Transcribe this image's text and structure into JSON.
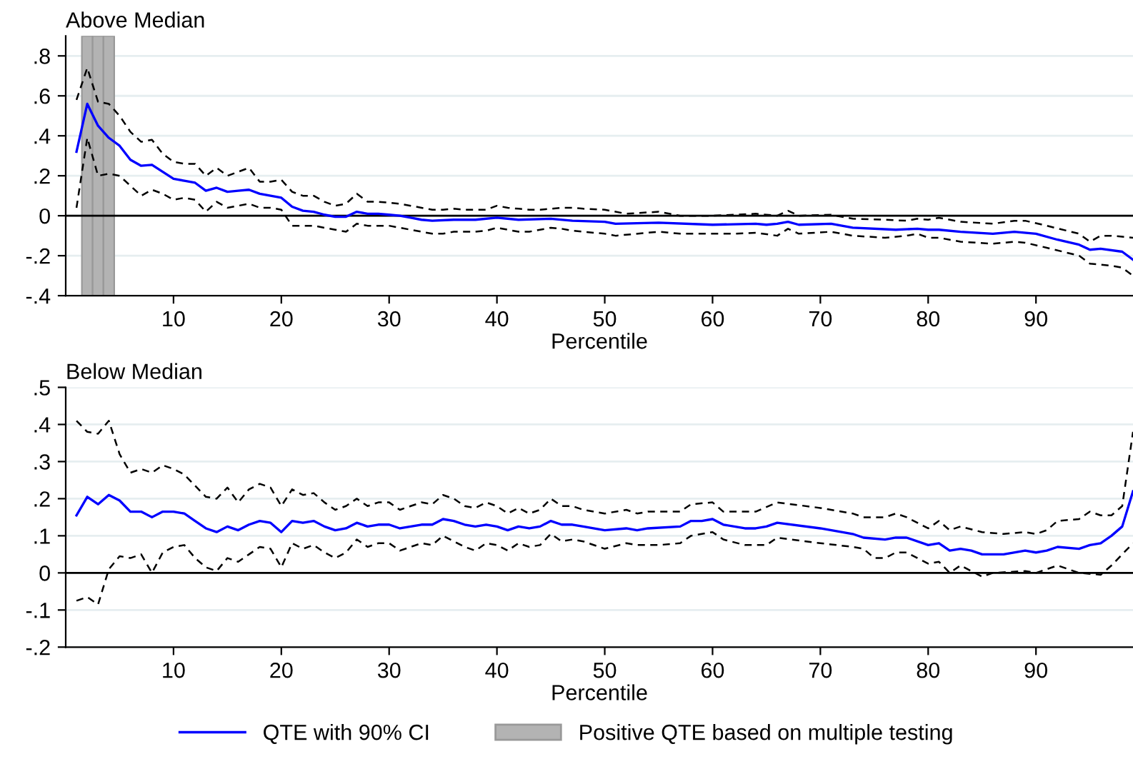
{
  "chart_data": [
    {
      "type": "line",
      "title": "Above Median",
      "xlabel": "Percentile",
      "xlim": [
        0,
        99
      ],
      "xticks": [
        10,
        20,
        30,
        40,
        50,
        60,
        70,
        80,
        90
      ],
      "ylim": [
        -0.4,
        0.9
      ],
      "yticks": [
        {
          "value": -0.4,
          "label": "-.4"
        },
        {
          "value": -0.2,
          "label": "-.2"
        },
        0,
        {
          "value": 0.2,
          "label": ".2"
        },
        {
          "value": 0.4,
          "label": ".4"
        },
        {
          "value": 0.6,
          "label": ".6"
        },
        {
          "value": 0.8,
          "label": ".8"
        }
      ],
      "grid": "y",
      "legend": "bottom",
      "ref_lines": [
        {
          "axis": "y",
          "value": 0,
          "color": "#000000"
        }
      ],
      "bands": [
        {
          "axis": "x",
          "from": 1.5,
          "to": 2.5,
          "color": "#b3b3b3",
          "label": "Positive QTE based on multiple testing"
        },
        {
          "axis": "x",
          "from": 2.5,
          "to": 3.5,
          "color": "#b3b3b3"
        },
        {
          "axis": "x",
          "from": 3.5,
          "to": 4.5,
          "color": "#b3b3b3"
        }
      ],
      "series": [
        {
          "name": "QTE with 90% CI",
          "color": "#0000ff",
          "line_style": "solid",
          "x": [
            1,
            2,
            3,
            4,
            5,
            6,
            7,
            8,
            9,
            10,
            11,
            12,
            13,
            14,
            15,
            16,
            17,
            18,
            19,
            20,
            21,
            22,
            23,
            24,
            25,
            26,
            27,
            28,
            29,
            30,
            31,
            32,
            33,
            34,
            36,
            38,
            40,
            42,
            45,
            47,
            50,
            51,
            55,
            60,
            64,
            65,
            66,
            67,
            68,
            71,
            73,
            77,
            79,
            80,
            81,
            83,
            86,
            88,
            90,
            92,
            94,
            95,
            96,
            98,
            99
          ],
          "values": [
            0.32,
            0.56,
            0.45,
            0.39,
            0.35,
            0.28,
            0.25,
            0.255,
            0.22,
            0.185,
            0.175,
            0.165,
            0.125,
            0.14,
            0.12,
            0.125,
            0.13,
            0.11,
            0.1,
            0.09,
            0.045,
            0.025,
            0.02,
            0.005,
            -0.005,
            -0.005,
            0.02,
            0.01,
            0.01,
            0.005,
            0,
            -0.01,
            -0.02,
            -0.025,
            -0.02,
            -0.02,
            -0.01,
            -0.02,
            -0.015,
            -0.025,
            -0.03,
            -0.04,
            -0.035,
            -0.045,
            -0.04,
            -0.045,
            -0.04,
            -0.03,
            -0.045,
            -0.04,
            -0.06,
            -0.07,
            -0.065,
            -0.07,
            -0.07,
            -0.08,
            -0.09,
            -0.08,
            -0.09,
            -0.12,
            -0.145,
            -0.17,
            -0.165,
            -0.18,
            -0.22
          ]
        },
        {
          "color": "#000000",
          "line_style": "dashed",
          "x": [
            1,
            2,
            3,
            4,
            5,
            6,
            7,
            8,
            9,
            10,
            11,
            12,
            13,
            14,
            15,
            16,
            17,
            18,
            19,
            20,
            21,
            22,
            23,
            24,
            25,
            26,
            27,
            28,
            29,
            30,
            31,
            32,
            33,
            34,
            35,
            36,
            37,
            38,
            39,
            40,
            41,
            42,
            43,
            44,
            45,
            46,
            47,
            48,
            50,
            52,
            55,
            57,
            60,
            64,
            66,
            67,
            68,
            71,
            73,
            76,
            78,
            79,
            80,
            81,
            83,
            86,
            88,
            89,
            91,
            94,
            95,
            96,
            97,
            99
          ],
          "values": [
            0.58,
            0.74,
            0.57,
            0.56,
            0.5,
            0.42,
            0.37,
            0.38,
            0.31,
            0.27,
            0.26,
            0.26,
            0.2,
            0.24,
            0.2,
            0.22,
            0.24,
            0.17,
            0.17,
            0.18,
            0.12,
            0.1,
            0.1,
            0.07,
            0.05,
            0.06,
            0.11,
            0.07,
            0.07,
            0.065,
            0.06,
            0.05,
            0.04,
            0.03,
            0.03,
            0.035,
            0.03,
            0.03,
            0.03,
            0.05,
            0.04,
            0.035,
            0.03,
            0.03,
            0.035,
            0.04,
            0.04,
            0.035,
            0.03,
            0.01,
            0.02,
            0,
            0,
            0.01,
            0,
            0.025,
            0,
            0.005,
            -0.015,
            -0.02,
            -0.025,
            -0.015,
            -0.02,
            -0.01,
            -0.03,
            -0.04,
            -0.025,
            -0.025,
            -0.05,
            -0.09,
            -0.13,
            -0.1,
            -0.1,
            -0.11
          ]
        },
        {
          "color": "#000000",
          "line_style": "dashed",
          "x": [
            1,
            2,
            3,
            4,
            5,
            6,
            7,
            8,
            9,
            10,
            11,
            12,
            13,
            14,
            15,
            16,
            17,
            18,
            19,
            20,
            21,
            22,
            23,
            24,
            25,
            26,
            27,
            28,
            29,
            30,
            31,
            32,
            33,
            34,
            35,
            36,
            37,
            38,
            39,
            40,
            41,
            42,
            43,
            44,
            45,
            46,
            47,
            48,
            50,
            51,
            55,
            57,
            60,
            62,
            64,
            66,
            67,
            68,
            71,
            73,
            76,
            78,
            79,
            80,
            81,
            83,
            86,
            88,
            89,
            91,
            94,
            95,
            97,
            98,
            99
          ],
          "values": [
            0.04,
            0.39,
            0.2,
            0.21,
            0.2,
            0.15,
            0.1,
            0.13,
            0.11,
            0.08,
            0.09,
            0.08,
            0.02,
            0.07,
            0.04,
            0.05,
            0.06,
            0.04,
            0.04,
            0.03,
            -0.05,
            -0.05,
            -0.05,
            -0.06,
            -0.07,
            -0.08,
            -0.04,
            -0.05,
            -0.05,
            -0.05,
            -0.06,
            -0.07,
            -0.08,
            -0.09,
            -0.09,
            -0.08,
            -0.08,
            -0.08,
            -0.075,
            -0.06,
            -0.07,
            -0.08,
            -0.08,
            -0.07,
            -0.06,
            -0.065,
            -0.075,
            -0.08,
            -0.09,
            -0.1,
            -0.08,
            -0.09,
            -0.09,
            -0.09,
            -0.085,
            -0.1,
            -0.065,
            -0.09,
            -0.08,
            -0.1,
            -0.11,
            -0.1,
            -0.09,
            -0.11,
            -0.11,
            -0.13,
            -0.14,
            -0.13,
            -0.135,
            -0.16,
            -0.2,
            -0.24,
            -0.25,
            -0.26,
            -0.3
          ]
        }
      ]
    },
    {
      "type": "line",
      "title": "Below Median",
      "xlabel": "Percentile",
      "xlim": [
        0,
        99
      ],
      "xticks": [
        10,
        20,
        30,
        40,
        50,
        60,
        70,
        80,
        90
      ],
      "ylim": [
        -0.2,
        0.5
      ],
      "yticks": [
        {
          "value": -0.2,
          "label": "-.2"
        },
        {
          "value": -0.1,
          "label": "-.1"
        },
        0,
        {
          "value": 0.1,
          "label": ".1"
        },
        {
          "value": 0.2,
          "label": ".2"
        },
        {
          "value": 0.3,
          "label": ".3"
        },
        {
          "value": 0.4,
          "label": ".4"
        },
        {
          "value": 0.5,
          "label": ".5"
        }
      ],
      "grid": "y",
      "ref_lines": [
        {
          "axis": "y",
          "value": 0,
          "color": "#000000"
        }
      ],
      "series": [
        {
          "color": "#0000ff",
          "line_style": "solid",
          "x": [
            1,
            2,
            3,
            4,
            5,
            6,
            7,
            8,
            9,
            10,
            11,
            12,
            13,
            14,
            15,
            16,
            17,
            18,
            19,
            20,
            21,
            22,
            23,
            24,
            25,
            26,
            27,
            28,
            29,
            30,
            31,
            32,
            33,
            34,
            35,
            36,
            37,
            38,
            39,
            40,
            41,
            42,
            43,
            44,
            45,
            46,
            47,
            48,
            50,
            52,
            53,
            54,
            57,
            58,
            59,
            60,
            61,
            63,
            64,
            65,
            66,
            70,
            73,
            74,
            76,
            77,
            78,
            80,
            81,
            82,
            83,
            84,
            85,
            87,
            89,
            90,
            91,
            92,
            94,
            95,
            96,
            97,
            98,
            99
          ],
          "values": [
            0.155,
            0.205,
            0.185,
            0.21,
            0.195,
            0.165,
            0.165,
            0.15,
            0.165,
            0.165,
            0.16,
            0.14,
            0.12,
            0.11,
            0.125,
            0.115,
            0.13,
            0.14,
            0.135,
            0.11,
            0.14,
            0.135,
            0.14,
            0.125,
            0.115,
            0.12,
            0.135,
            0.125,
            0.13,
            0.13,
            0.12,
            0.125,
            0.13,
            0.13,
            0.145,
            0.14,
            0.13,
            0.125,
            0.13,
            0.125,
            0.115,
            0.125,
            0.12,
            0.125,
            0.14,
            0.13,
            0.13,
            0.125,
            0.115,
            0.12,
            0.115,
            0.12,
            0.125,
            0.14,
            0.14,
            0.145,
            0.13,
            0.12,
            0.12,
            0.125,
            0.135,
            0.12,
            0.105,
            0.095,
            0.09,
            0.095,
            0.095,
            0.075,
            0.08,
            0.06,
            0.065,
            0.06,
            0.05,
            0.05,
            0.06,
            0.055,
            0.06,
            0.07,
            0.065,
            0.075,
            0.08,
            0.1,
            0.125,
            0.22
          ]
        },
        {
          "color": "#000000",
          "line_style": "dashed",
          "x": [
            1,
            2,
            3,
            4,
            5,
            6,
            7,
            8,
            9,
            10,
            11,
            12,
            13,
            14,
            15,
            16,
            17,
            18,
            19,
            20,
            21,
            22,
            23,
            24,
            25,
            26,
            27,
            28,
            29,
            30,
            31,
            32,
            33,
            34,
            35,
            36,
            37,
            38,
            39,
            40,
            41,
            42,
            43,
            44,
            45,
            46,
            47,
            48,
            50,
            52,
            53,
            54,
            57,
            58,
            60,
            61,
            64,
            66,
            70,
            73,
            74,
            76,
            77,
            78,
            80,
            81,
            82,
            83,
            85,
            87,
            89,
            90,
            91,
            92,
            94,
            95,
            96,
            97,
            98,
            99
          ],
          "values": [
            0.41,
            0.38,
            0.375,
            0.41,
            0.32,
            0.27,
            0.28,
            0.27,
            0.29,
            0.28,
            0.265,
            0.235,
            0.205,
            0.2,
            0.23,
            0.19,
            0.225,
            0.24,
            0.23,
            0.18,
            0.225,
            0.21,
            0.215,
            0.19,
            0.17,
            0.18,
            0.2,
            0.18,
            0.19,
            0.19,
            0.17,
            0.18,
            0.19,
            0.185,
            0.21,
            0.2,
            0.18,
            0.175,
            0.19,
            0.18,
            0.16,
            0.175,
            0.16,
            0.17,
            0.2,
            0.18,
            0.18,
            0.17,
            0.16,
            0.17,
            0.16,
            0.165,
            0.165,
            0.185,
            0.19,
            0.165,
            0.165,
            0.19,
            0.175,
            0.16,
            0.15,
            0.15,
            0.16,
            0.15,
            0.12,
            0.14,
            0.115,
            0.125,
            0.11,
            0.105,
            0.11,
            0.105,
            0.115,
            0.14,
            0.145,
            0.165,
            0.155,
            0.155,
            0.18,
            0.38
          ]
        },
        {
          "color": "#000000",
          "line_style": "dashed",
          "x": [
            1,
            2,
            3,
            4,
            5,
            6,
            7,
            8,
            9,
            10,
            11,
            12,
            13,
            14,
            15,
            16,
            17,
            18,
            19,
            20,
            21,
            22,
            23,
            24,
            25,
            26,
            27,
            28,
            29,
            30,
            31,
            32,
            33,
            34,
            35,
            36,
            37,
            38,
            39,
            40,
            41,
            42,
            43,
            44,
            45,
            46,
            47,
            48,
            50,
            52,
            53,
            55,
            57,
            58,
            60,
            61,
            63,
            65,
            66,
            70,
            73,
            74,
            75,
            76,
            77,
            78,
            80,
            81,
            82,
            83,
            85,
            86,
            89,
            90,
            92,
            94,
            96,
            97,
            98,
            99
          ],
          "values": [
            -0.075,
            -0.065,
            -0.085,
            0.01,
            0.045,
            0.04,
            0.05,
            0,
            0.055,
            0.07,
            0.075,
            0.04,
            0.015,
            0.005,
            0.04,
            0.03,
            0.05,
            0.07,
            0.065,
            0.015,
            0.08,
            0.065,
            0.075,
            0.055,
            0.04,
            0.055,
            0.09,
            0.07,
            0.08,
            0.08,
            0.06,
            0.07,
            0.08,
            0.075,
            0.1,
            0.085,
            0.07,
            0.06,
            0.08,
            0.075,
            0.06,
            0.08,
            0.07,
            0.075,
            0.105,
            0.085,
            0.09,
            0.085,
            0.065,
            0.08,
            0.075,
            0.075,
            0.08,
            0.1,
            0.11,
            0.09,
            0.075,
            0.075,
            0.095,
            0.08,
            0.07,
            0.065,
            0.04,
            0.04,
            0.055,
            0.055,
            0.025,
            0.03,
            0,
            0.02,
            -0.01,
            0,
            0.005,
            0,
            0.02,
            0,
            -0.005,
            0.02,
            0.05,
            0.08
          ]
        }
      ]
    }
  ]
}
